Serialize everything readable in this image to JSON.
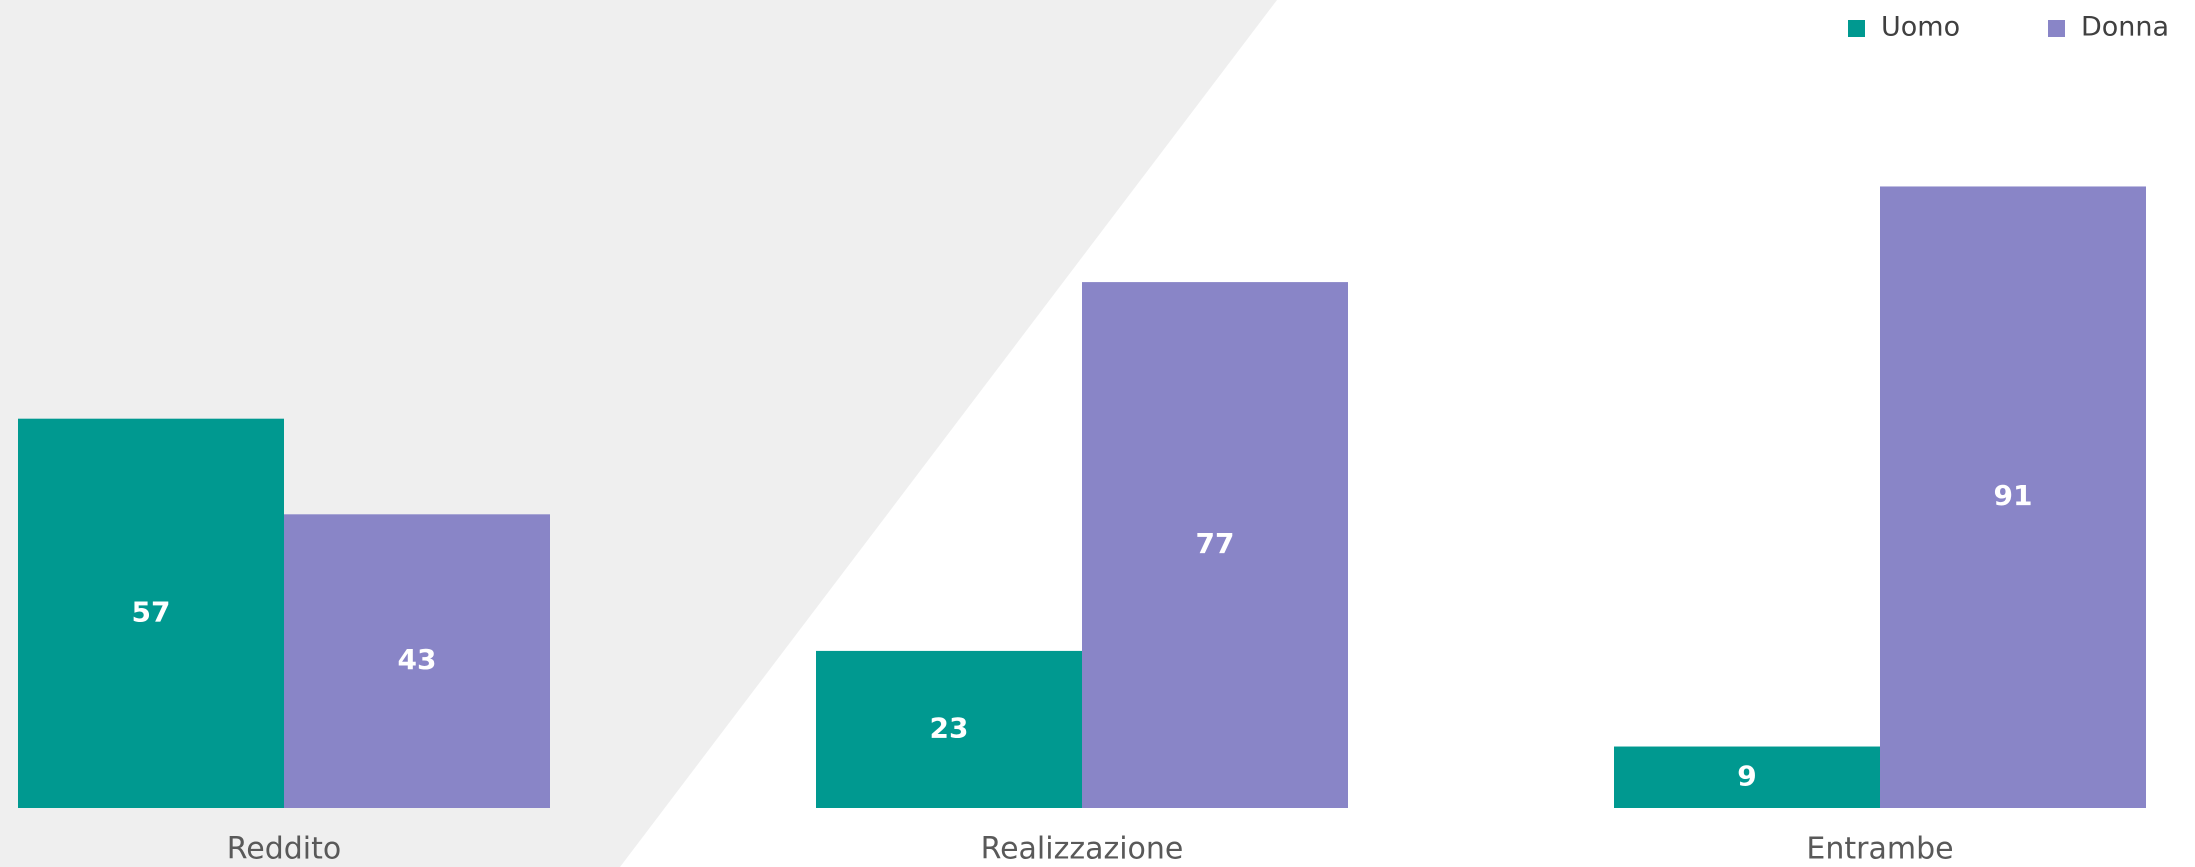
{
  "chart_data": {
    "type": "bar",
    "categories": [
      "Reddito",
      "Realizzazione",
      "Entrambe"
    ],
    "series": [
      {
        "name": "Uomo",
        "color": "#009990",
        "values": [
          57,
          23,
          9
        ]
      },
      {
        "name": "Donna",
        "color": "#8985c7",
        "values": [
          43,
          77,
          91
        ]
      }
    ],
    "legend": "top-right"
  }
}
